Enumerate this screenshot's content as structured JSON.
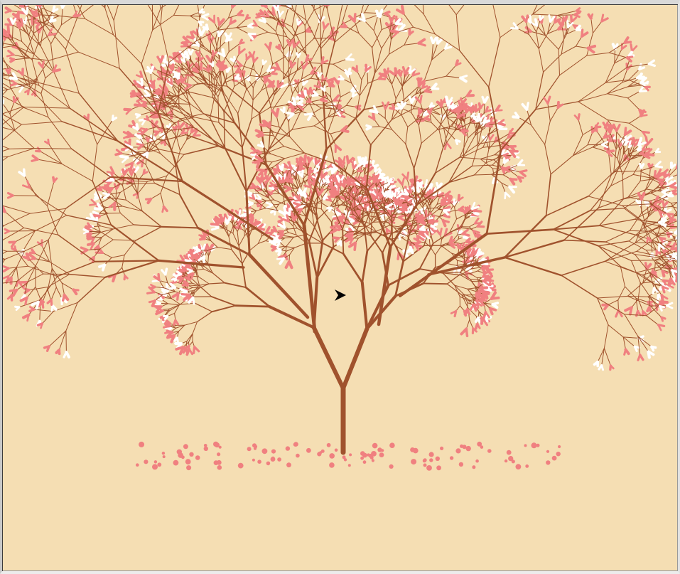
{
  "scene": {
    "title": "",
    "background_color": "#f5deb3",
    "trunk_color": "#a0522d",
    "blossom_color": "#f08080",
    "highlight_color": "#ffffff",
    "cursor_color": "#000000",
    "cursor_icon": "turtle-arrow-icon"
  }
}
